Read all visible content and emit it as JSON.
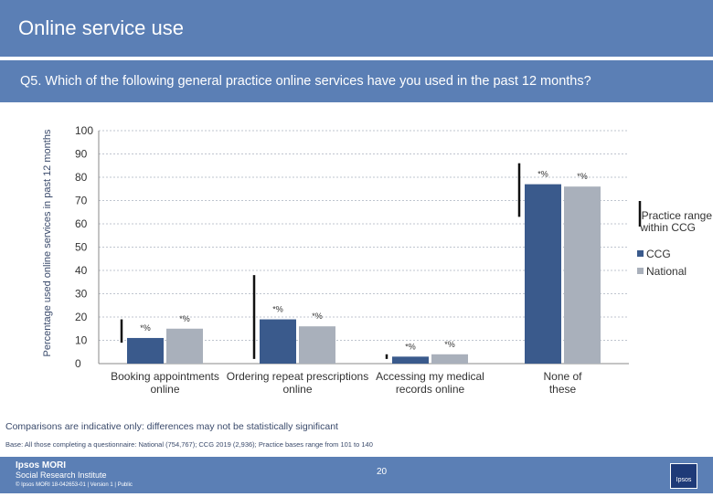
{
  "header": {
    "title": "Online service use"
  },
  "question": "Q5. Which of the following general practice online services have you used in the past 12 months?",
  "chart_data": {
    "type": "bar",
    "ylabel": "Percentage used online services in past 12 months",
    "ylim": [
      0,
      100
    ],
    "yticks": [
      0,
      10,
      20,
      30,
      40,
      50,
      60,
      70,
      80,
      90,
      100
    ],
    "categories": [
      "Booking appointments online",
      "Ordering repeat prescriptions online",
      "Accessing my medical records online",
      "None of these"
    ],
    "series": [
      {
        "name": "CCG",
        "values": [
          11,
          19,
          3,
          77
        ],
        "labels": [
          "*%",
          "*%",
          "*%",
          "*%"
        ],
        "color": "#3a5a8c"
      },
      {
        "name": "National",
        "values": [
          15,
          16,
          4,
          76
        ],
        "labels": [
          "*%",
          "*%",
          "*%",
          "*%"
        ],
        "color": "#a9b0bb"
      }
    ],
    "range_series": {
      "name": "Practice range within CCG",
      "ranges": [
        [
          9,
          19
        ],
        [
          2,
          38
        ],
        [
          2,
          4
        ],
        [
          63,
          86
        ]
      ]
    },
    "legend": [
      {
        "label": "Practice range within CCG"
      },
      {
        "label": "CCG",
        "color": "#3a5a8c"
      },
      {
        "label": "National",
        "color": "#a9b0bb"
      }
    ]
  },
  "notes": {
    "comparison": "Comparisons are indicative only: differences may not be statistically significant",
    "base": "Base: All those completing a questionnaire: National (754,767); CCG 2019 (2,936); Practice bases range from 101 to 140"
  },
  "footer": {
    "brand_line1": "Ipsos MORI",
    "brand_line2": "Social Research Institute",
    "page_number": "20",
    "copyright": "© Ipsos MORI     18-042653-01 | Version 1 | Public",
    "logo_text": "Ipsos"
  }
}
